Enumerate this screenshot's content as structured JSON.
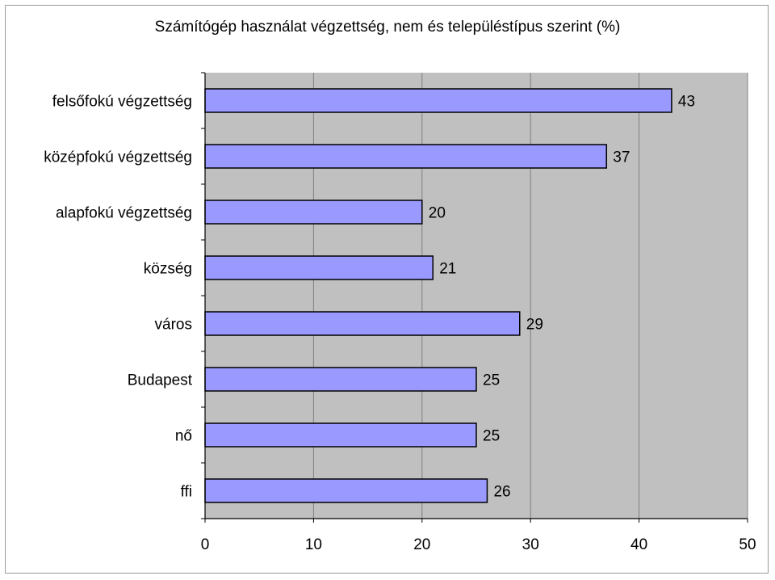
{
  "chart_data": {
    "type": "bar",
    "orientation": "horizontal",
    "title": "Számítógép használat végzettség, nem és településtípus szerint (%)",
    "categories": [
      "felsőfokú végzettség",
      "középfokú végzettség",
      "alapfokú végzettség",
      "község",
      "város",
      "Budapest",
      "nő",
      "ffi"
    ],
    "values": [
      43,
      37,
      20,
      21,
      29,
      25,
      25,
      26
    ],
    "xlim": [
      0,
      50
    ],
    "xticks": [
      0,
      10,
      20,
      30,
      40,
      50
    ],
    "xlabel": "",
    "ylabel": "",
    "grid": true,
    "legend": "none",
    "colors": {
      "bar": "#9999ff",
      "plot_bg": "#c0c0c0",
      "grid": "#808080",
      "bar_edge": "#000000"
    }
  }
}
